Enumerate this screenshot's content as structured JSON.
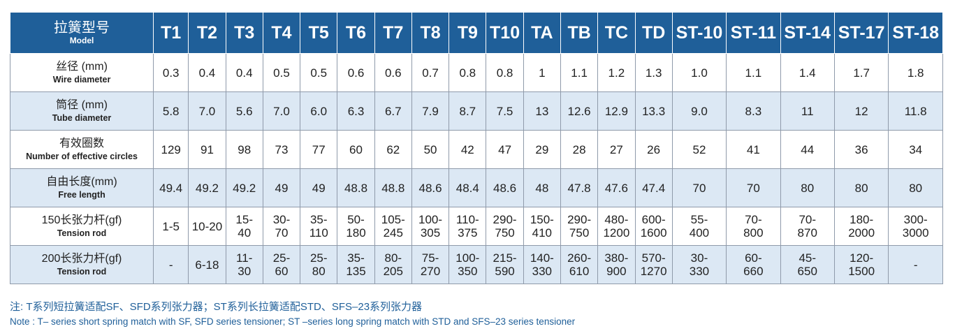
{
  "header": {
    "label_cn": "拉簧型号",
    "label_en": "Model",
    "models": [
      "T1",
      "T2",
      "T3",
      "T4",
      "T5",
      "T6",
      "T7",
      "T8",
      "T9",
      "T10",
      "TA",
      "TB",
      "TC",
      "TD",
      "ST-10",
      "ST-11",
      "ST-14",
      "ST-17",
      "ST-18"
    ]
  },
  "rows": [
    {
      "label_cn": "丝径 (mm)",
      "label_en": "Wire diameter",
      "values": [
        "0.3",
        "0.4",
        "0.4",
        "0.5",
        "0.5",
        "0.6",
        "0.6",
        "0.7",
        "0.8",
        "0.8",
        "1",
        "1.1",
        "1.2",
        "1.3",
        "1.0",
        "1.1",
        "1.4",
        "1.7",
        "1.8"
      ]
    },
    {
      "label_cn": "筒径 (mm)",
      "label_en": "Tube diameter",
      "values": [
        "5.8",
        "7.0",
        "5.6",
        "7.0",
        "6.0",
        "6.3",
        "6.7",
        "7.9",
        "8.7",
        "7.5",
        "13",
        "12.6",
        "12.9",
        "13.3",
        "9.0",
        "8.3",
        "11",
        "12",
        "11.8"
      ]
    },
    {
      "label_cn": "有效圈数",
      "label_en": "Number of effective circles",
      "values": [
        "129",
        "91",
        "98",
        "73",
        "77",
        "60",
        "62",
        "50",
        "42",
        "47",
        "29",
        "28",
        "27",
        "26",
        "52",
        "41",
        "44",
        "36",
        "34"
      ]
    },
    {
      "label_cn": "自由长度(mm)",
      "label_en": "Free length",
      "values": [
        "49.4",
        "49.2",
        "49.2",
        "49",
        "49",
        "48.8",
        "48.8",
        "48.6",
        "48.4",
        "48.6",
        "48",
        "47.8",
        "47.6",
        "47.4",
        "70",
        "70",
        "80",
        "80",
        "80"
      ]
    },
    {
      "label_cn": "150长张力杆(gf)",
      "label_en": "Tension rod",
      "values": [
        "1-5",
        "10-20",
        "15-\n40",
        "30-\n70",
        "35-\n110",
        "50-\n180",
        "105-\n245",
        "100-\n305",
        "110-\n375",
        "290-\n750",
        "150-\n410",
        "290-\n750",
        "480-\n1200",
        "600-\n1600",
        "55-\n400",
        "70-\n800",
        "70-\n870",
        "180-\n2000",
        "300-\n3000"
      ]
    },
    {
      "label_cn": "200长张力杆(gf)",
      "label_en": "Tension rod",
      "values": [
        "-",
        "6-18",
        "11-\n30",
        "25-\n60",
        "25-\n80",
        "35-\n135",
        "80-\n205",
        "75-\n270",
        "100-\n350",
        "215-\n590",
        "140-\n330",
        "260-\n610",
        "380-\n900",
        "570-\n1270",
        "30-\n330",
        "60-\n660",
        "45-\n650",
        "120-\n1500",
        "-"
      ]
    }
  ],
  "notes": {
    "cn": "注: T系列短拉簧适配SF、SFD系列张力器；ST系列长拉簧适配STD、SFS–23系列张力器",
    "en": "Note : T– series short spring match with SF, SFD series tensioner; ST –series long spring match with STD and SFS–23 series tensioner"
  },
  "colors": {
    "header_bg": "#1f5f99",
    "alt_row_bg": "#dce8f4",
    "note_text": "#1f5f99"
  }
}
